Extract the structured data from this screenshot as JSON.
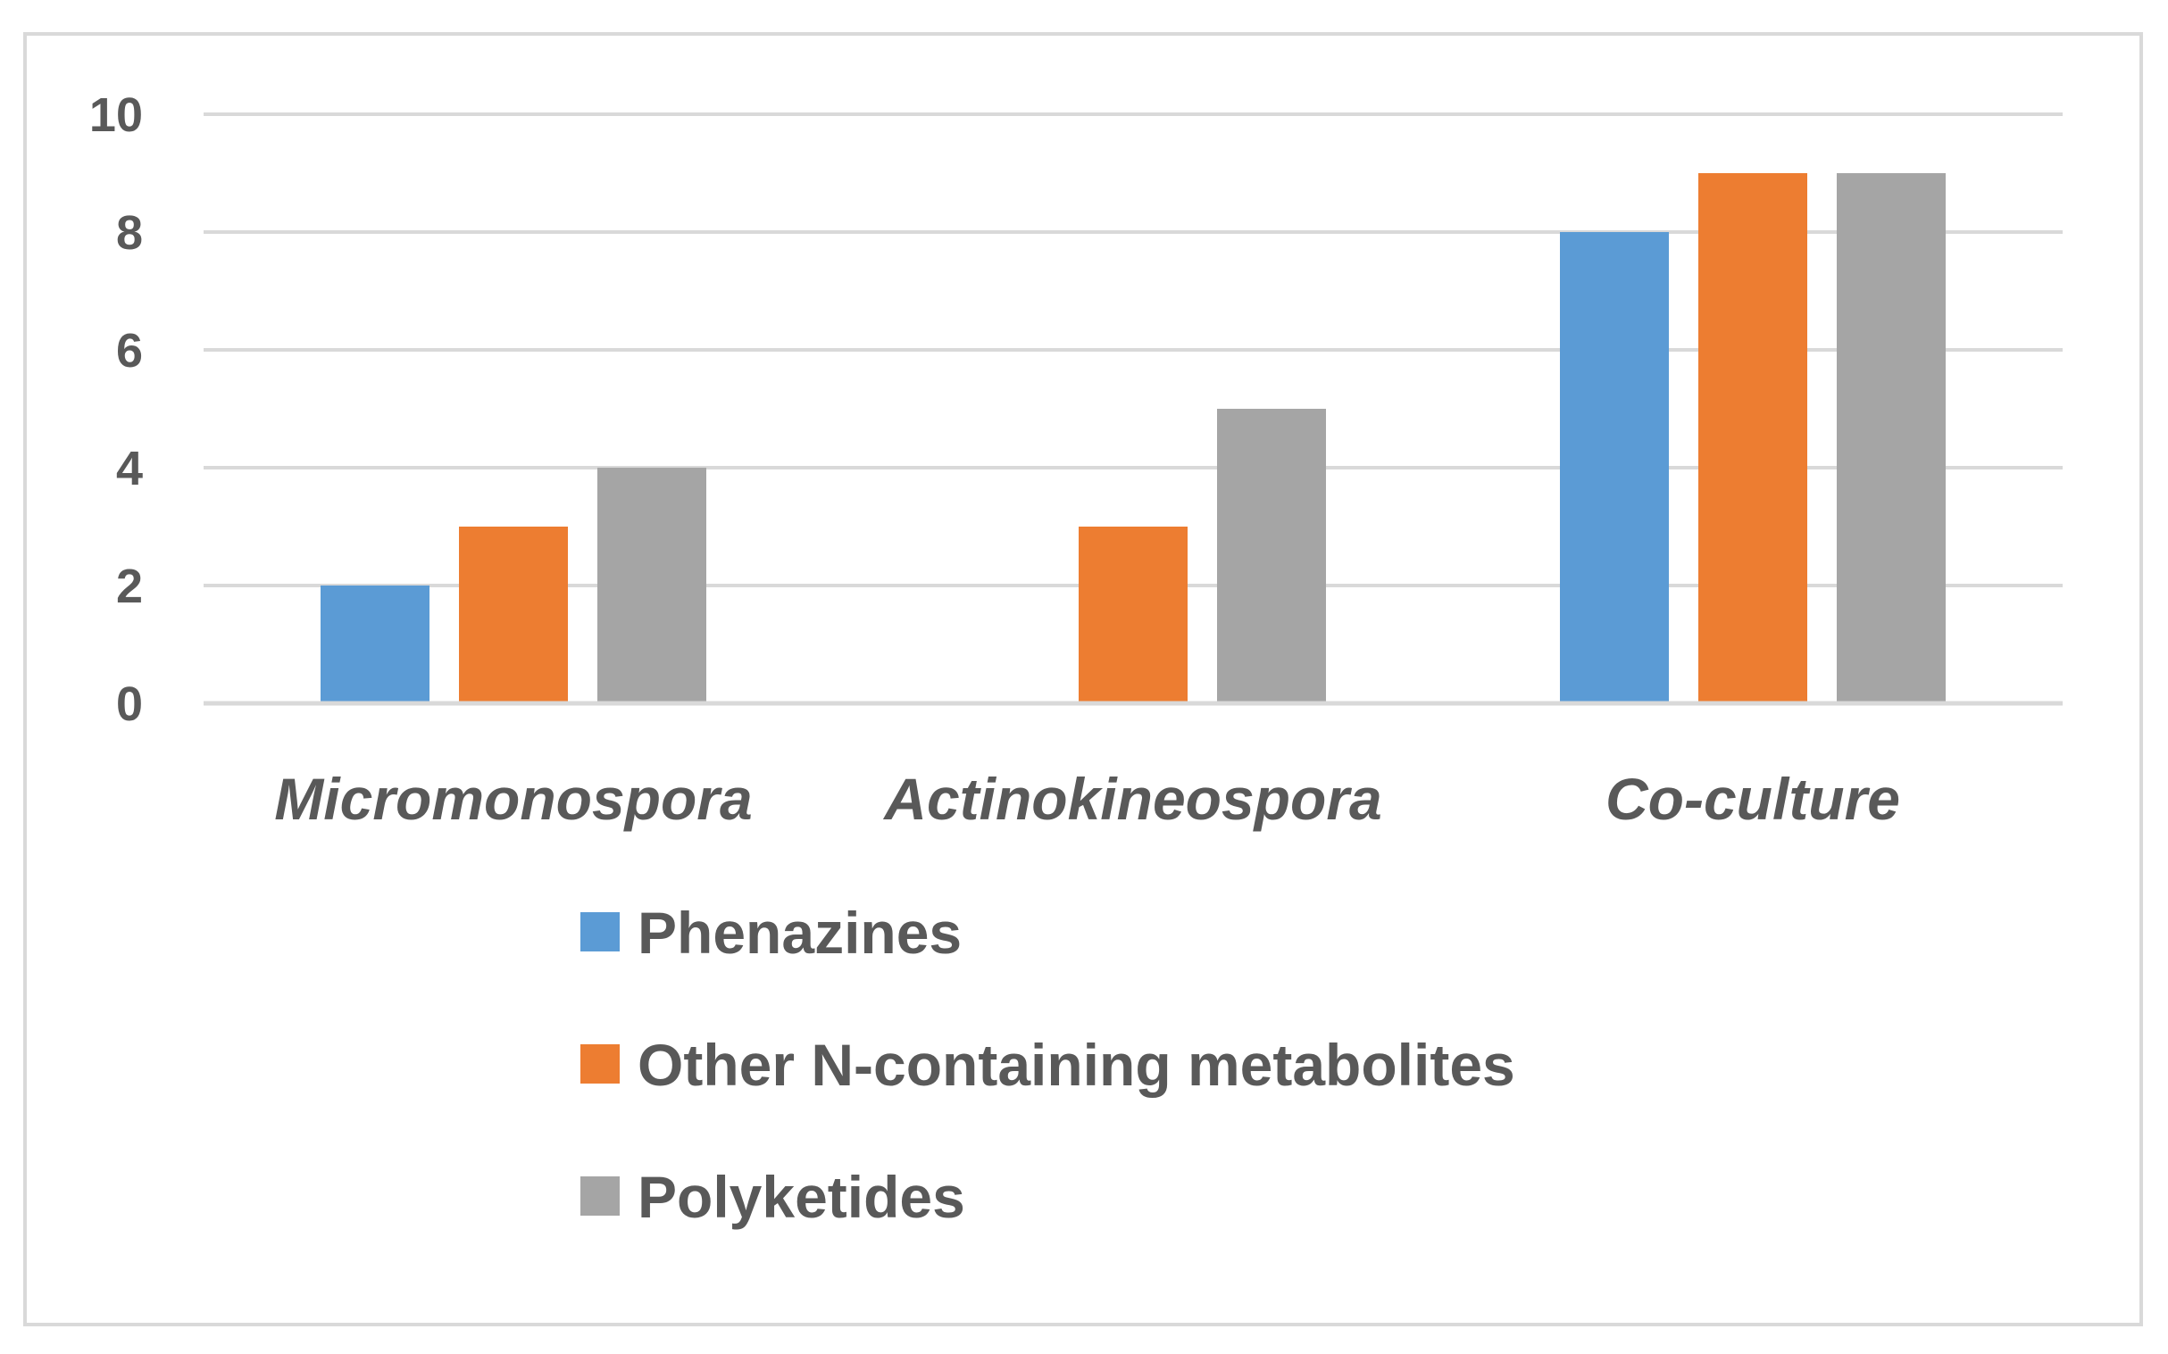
{
  "chart_data": {
    "type": "bar",
    "title": "",
    "xlabel": "",
    "ylabel": "",
    "categories": [
      "Micromonospora",
      "Actinokineospora",
      "Co-culture"
    ],
    "series": [
      {
        "name": "Phenazines",
        "values": [
          2,
          0,
          8
        ],
        "color": "#5b9bd5"
      },
      {
        "name": "Other N-containing metabolites",
        "values": [
          3,
          3,
          9
        ],
        "color": "#ed7d31"
      },
      {
        "name": "Polyketides",
        "values": [
          4,
          5,
          9
        ],
        "color": "#a5a5a5"
      }
    ],
    "ylim": [
      0,
      10
    ],
    "yticks": [
      "0",
      "2",
      "4",
      "6",
      "8",
      "10"
    ],
    "grid": true,
    "legend_position": "bottom"
  }
}
